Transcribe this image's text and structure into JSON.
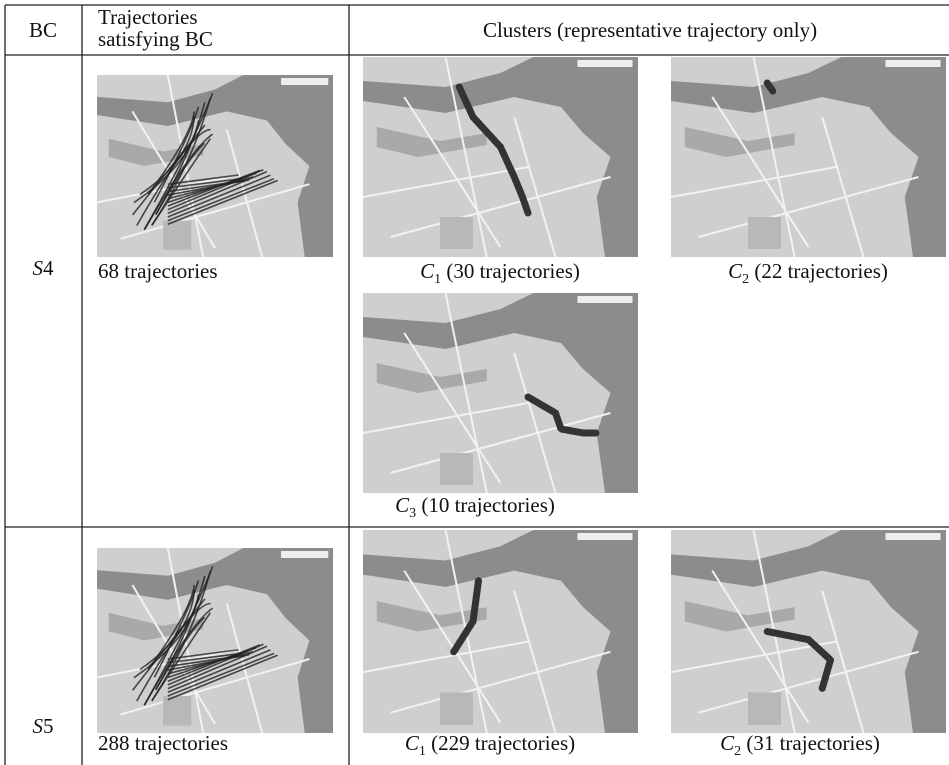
{
  "header": {
    "bc": "BC",
    "trajectories": [
      "Trajectories",
      "satisfying BC"
    ],
    "clusters": "Clusters (representative trajectory only)"
  },
  "rows": [
    {
      "bc": {
        "letter": "S",
        "number": "4"
      },
      "all": "68 trajectories",
      "clusters": [
        {
          "letter": "C",
          "sub": "1",
          "text": " (30 trajectories)"
        },
        {
          "letter": "C",
          "sub": "2",
          "text": " (22 trajectories)"
        },
        {
          "letter": "C",
          "sub": "3",
          "text": " (10 trajectories)"
        }
      ]
    },
    {
      "bc": {
        "letter": "S",
        "number": "5"
      },
      "all": "288 trajectories",
      "clusters": [
        {
          "letter": "C",
          "sub": "1",
          "text": " (229 trajectories)"
        },
        {
          "letter": "C",
          "sub": "2",
          "text": " (31 trajectories)"
        }
      ]
    }
  ]
}
